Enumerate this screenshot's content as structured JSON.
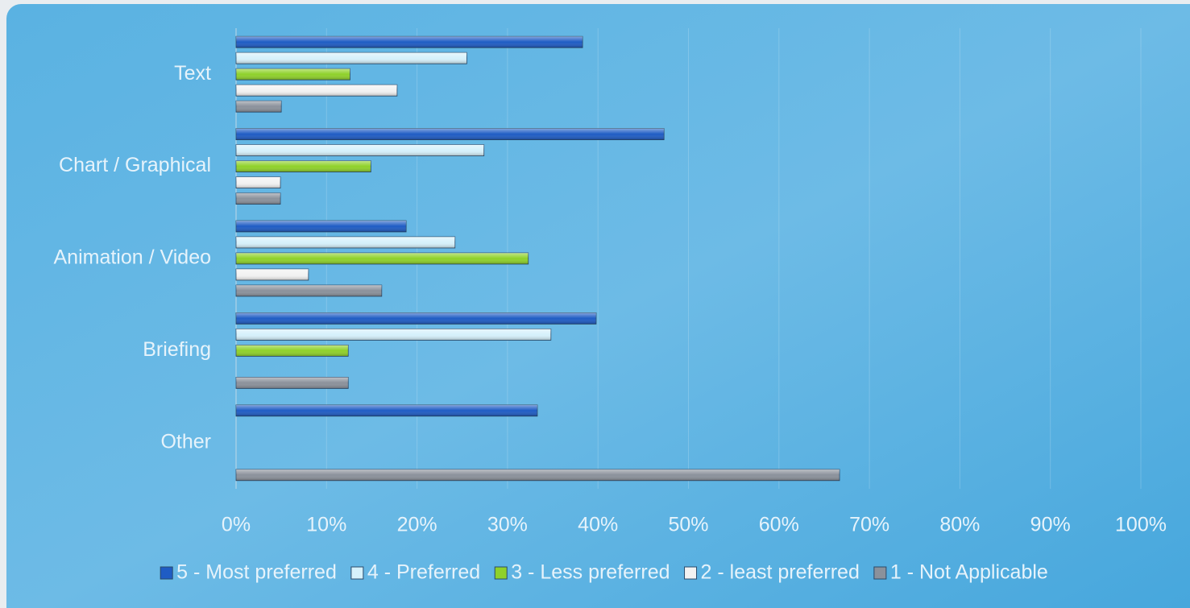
{
  "chart_data": {
    "type": "bar",
    "orientation": "horizontal",
    "categories": [
      "Text",
      "Chart / Graphical",
      "Animation / Video",
      "Briefing",
      "Other"
    ],
    "series": [
      {
        "name": "5 - Most preferred",
        "color": "#1f5cc4",
        "values": [
          38.3,
          47.3,
          18.8,
          39.8,
          33.3
        ]
      },
      {
        "name": "4 - Preferred",
        "color": "#d6f1fb",
        "values": [
          25.5,
          27.4,
          24.2,
          34.8,
          null
        ]
      },
      {
        "name": "3 - Less preferred",
        "color": "#8fd12a",
        "values": [
          12.6,
          14.9,
          32.3,
          12.4,
          null
        ]
      },
      {
        "name": "2 - least preferred",
        "color": "#f2f2f2",
        "values": [
          17.8,
          4.9,
          8.0,
          null,
          null
        ]
      },
      {
        "name": "1 - Not Applicable",
        "color": "#8b919b",
        "values": [
          5.0,
          4.9,
          16.1,
          12.4,
          66.7
        ]
      }
    ],
    "xlim": [
      0,
      100
    ],
    "xticks": [
      {
        "value": 0,
        "label": "0%"
      },
      {
        "value": 10,
        "label": "10%"
      },
      {
        "value": 20,
        "label": "20%"
      },
      {
        "value": 30,
        "label": "30%"
      },
      {
        "value": 40,
        "label": "40%"
      },
      {
        "value": 50,
        "label": "50%"
      },
      {
        "value": 60,
        "label": "60%"
      },
      {
        "value": 70,
        "label": "70%"
      },
      {
        "value": 80,
        "label": "80%"
      },
      {
        "value": 90,
        "label": "90%"
      },
      {
        "value": 100,
        "label": "100%"
      }
    ],
    "grid": true,
    "legend": "bottom"
  }
}
